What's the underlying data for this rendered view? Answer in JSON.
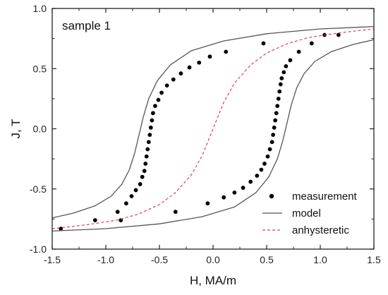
{
  "chart_data": {
    "type": "scatter",
    "annotation": "sample 1",
    "xlabel": "H, MA/m",
    "ylabel": "J, T",
    "xlim": [
      -1.5,
      1.5
    ],
    "ylim": [
      -1.0,
      1.0
    ],
    "xticks": [
      "-1.5",
      "-1.0",
      "-0.5",
      "0.0",
      "0.5",
      "1.0",
      "1.5"
    ],
    "yticks": [
      "-1.0",
      "-0.5",
      "0.0",
      "0.5",
      "1.0"
    ],
    "grid": false,
    "legend_position": "bottom-right",
    "series": [
      {
        "name": "measurement",
        "style": "markers",
        "color": "#000000",
        "points": [
          [
            -1.42,
            -0.83
          ],
          [
            -1.1,
            -0.76
          ],
          [
            -0.86,
            -0.76
          ],
          [
            -0.35,
            -0.69
          ],
          [
            -0.05,
            -0.62
          ],
          [
            0.1,
            -0.57
          ],
          [
            0.2,
            -0.53
          ],
          [
            0.28,
            -0.49
          ],
          [
            0.35,
            -0.44
          ],
          [
            0.41,
            -0.39
          ],
          [
            0.45,
            -0.34
          ],
          [
            0.48,
            -0.29
          ],
          [
            0.51,
            -0.23
          ],
          [
            0.53,
            -0.17
          ],
          [
            0.55,
            -0.11
          ],
          [
            0.56,
            -0.05
          ],
          [
            0.57,
            0.01
          ],
          [
            0.58,
            0.07
          ],
          [
            0.59,
            0.13
          ],
          [
            0.6,
            0.19
          ],
          [
            0.61,
            0.25
          ],
          [
            0.62,
            0.31
          ],
          [
            0.63,
            0.37
          ],
          [
            0.64,
            0.42
          ],
          [
            0.66,
            0.47
          ],
          [
            0.68,
            0.52
          ],
          [
            0.72,
            0.57
          ],
          [
            0.8,
            0.64
          ],
          [
            0.92,
            0.71
          ],
          [
            1.04,
            0.78
          ],
          [
            1.17,
            0.78
          ],
          [
            0.47,
            0.71
          ],
          [
            0.12,
            0.64
          ],
          [
            -0.03,
            0.6
          ],
          [
            -0.13,
            0.55
          ],
          [
            -0.22,
            0.51
          ],
          [
            -0.3,
            0.46
          ],
          [
            -0.37,
            0.41
          ],
          [
            -0.43,
            0.36
          ],
          [
            -0.48,
            0.3
          ],
          [
            -0.51,
            0.24
          ],
          [
            -0.54,
            0.19
          ],
          [
            -0.56,
            0.13
          ],
          [
            -0.57,
            0.07
          ],
          [
            -0.58,
            0.01
          ],
          [
            -0.59,
            -0.05
          ],
          [
            -0.6,
            -0.11
          ],
          [
            -0.61,
            -0.17
          ],
          [
            -0.62,
            -0.23
          ],
          [
            -0.63,
            -0.29
          ],
          [
            -0.64,
            -0.35
          ],
          [
            -0.66,
            -0.4
          ],
          [
            -0.68,
            -0.46
          ],
          [
            -0.72,
            -0.51
          ],
          [
            -0.76,
            -0.56
          ],
          [
            -0.81,
            -0.62
          ],
          [
            -0.89,
            -0.69
          ]
        ]
      },
      {
        "name": "model",
        "style": "solid",
        "color": "#555555",
        "points": [
          [
            -1.5,
            -0.74
          ],
          [
            -1.3,
            -0.7
          ],
          [
            -1.1,
            -0.64
          ],
          [
            -0.95,
            -0.56
          ],
          [
            -0.85,
            -0.46
          ],
          [
            -0.78,
            -0.34
          ],
          [
            -0.73,
            -0.2
          ],
          [
            -0.69,
            -0.05
          ],
          [
            -0.65,
            0.1
          ],
          [
            -0.6,
            0.25
          ],
          [
            -0.52,
            0.4
          ],
          [
            -0.4,
            0.53
          ],
          [
            -0.2,
            0.65
          ],
          [
            0.1,
            0.73
          ],
          [
            0.5,
            0.79
          ],
          [
            1.0,
            0.83
          ],
          [
            1.5,
            0.85
          ],
          null,
          [
            1.5,
            0.74
          ],
          [
            1.3,
            0.7
          ],
          [
            1.1,
            0.64
          ],
          [
            0.95,
            0.56
          ],
          [
            0.85,
            0.46
          ],
          [
            0.78,
            0.34
          ],
          [
            0.73,
            0.2
          ],
          [
            0.69,
            0.05
          ],
          [
            0.65,
            -0.1
          ],
          [
            0.6,
            -0.25
          ],
          [
            0.52,
            -0.4
          ],
          [
            0.4,
            -0.53
          ],
          [
            0.2,
            -0.65
          ],
          [
            -0.1,
            -0.73
          ],
          [
            -0.5,
            -0.79
          ],
          [
            -1.0,
            -0.83
          ],
          [
            -1.5,
            -0.85
          ]
        ]
      },
      {
        "name": "anhysteretic",
        "style": "dashed",
        "color": "#e0405a",
        "points": [
          [
            -1.5,
            -0.83
          ],
          [
            -1.2,
            -0.8
          ],
          [
            -0.9,
            -0.76
          ],
          [
            -0.7,
            -0.71
          ],
          [
            -0.5,
            -0.63
          ],
          [
            -0.35,
            -0.53
          ],
          [
            -0.2,
            -0.38
          ],
          [
            -0.1,
            -0.22
          ],
          [
            0.0,
            0.0
          ],
          [
            0.1,
            0.22
          ],
          [
            0.2,
            0.38
          ],
          [
            0.35,
            0.53
          ],
          [
            0.5,
            0.63
          ],
          [
            0.7,
            0.71
          ],
          [
            0.9,
            0.76
          ],
          [
            1.2,
            0.8
          ],
          [
            1.5,
            0.83
          ]
        ]
      }
    ]
  }
}
